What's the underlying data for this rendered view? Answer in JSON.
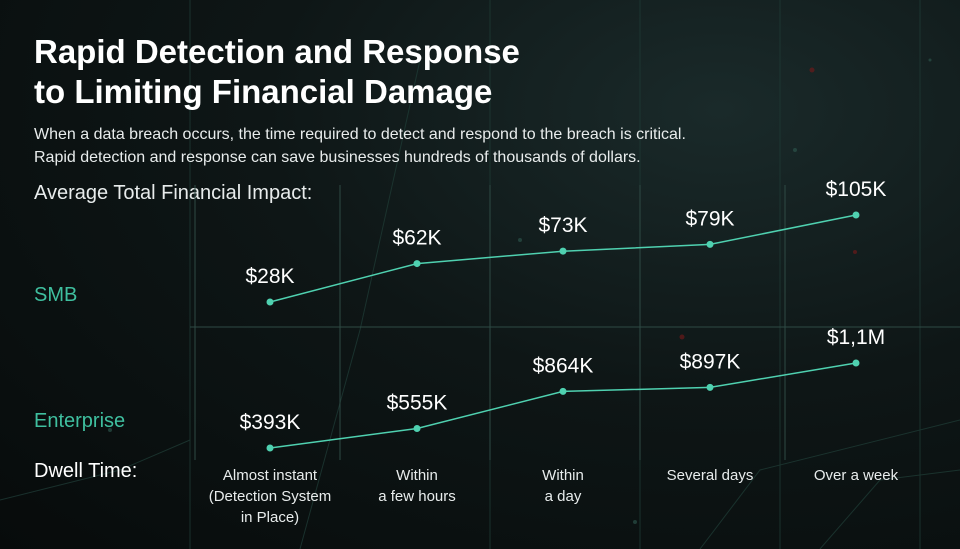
{
  "title_lines": [
    "Rapid Detection and Response",
    "to Limiting Financial Damage"
  ],
  "subtitle_lines": [
    "When a data breach occurs, the time required to detect and respond to the breach is critical.",
    "Rapid detection and response can save businesses hundreds of thousands of dollars."
  ],
  "impact_label": "Average Total Financial Impact:",
  "dwell_label": "Dwell Time:",
  "colors": {
    "accent": "#3fbf9f",
    "line": "#4fd1b0",
    "grid": "#2e4a44",
    "text": "#ffffff"
  },
  "chart_data": {
    "type": "line",
    "categories": [
      [
        "Almost instant",
        "(Detection System",
        "in Place)"
      ],
      [
        "Within",
        "a few hours"
      ],
      [
        "Within",
        "a day"
      ],
      [
        "Several days"
      ],
      [
        "Over a week"
      ]
    ],
    "series": [
      {
        "name": "SMB",
        "values": [
          28,
          62,
          73,
          79,
          105
        ],
        "unit": "thousand USD",
        "labels": [
          "$28K",
          "$62K",
          "$73K",
          "$79K",
          "$105K"
        ]
      },
      {
        "name": "Enterprise",
        "values": [
          393,
          555,
          864,
          897,
          1100
        ],
        "unit": "thousand USD",
        "labels": [
          "$393K",
          "$555K",
          "$864K",
          "$897K",
          "$1,1M"
        ]
      }
    ],
    "grid": true,
    "legend": "left"
  }
}
